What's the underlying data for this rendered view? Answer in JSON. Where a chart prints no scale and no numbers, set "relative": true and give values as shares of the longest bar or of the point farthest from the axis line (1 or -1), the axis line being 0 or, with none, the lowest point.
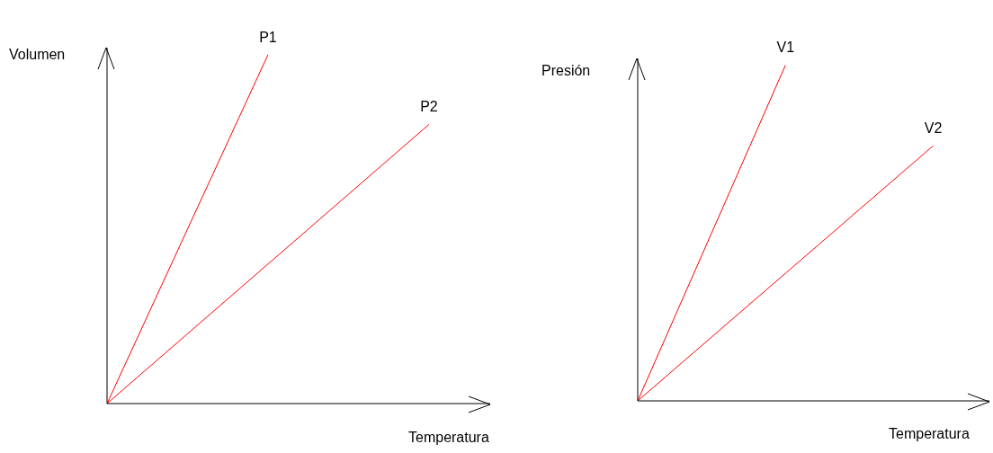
{
  "chart_data": [
    {
      "type": "line",
      "relative": true,
      "xlabel": "Temperatura",
      "ylabel": "Volumen",
      "categories": [
        null,
        null,
        null,
        null,
        null
      ],
      "series": [
        {
          "name": "P1",
          "color": "#ff0000",
          "values": [
            0,
            0.5,
            1,
            null,
            null
          ]
        },
        {
          "name": "P2",
          "color": "#ff0000",
          "values": [
            0,
            0.2,
            0.4,
            0.6,
            0.8
          ]
        }
      ]
    },
    {
      "type": "line",
      "relative": true,
      "xlabel": "Temperatura",
      "ylabel": "Presión",
      "categories": [
        null,
        null,
        null,
        null,
        null
      ],
      "series": [
        {
          "name": "V1",
          "color": "#ff0000",
          "values": [
            0,
            0.5,
            1,
            null,
            null
          ]
        },
        {
          "name": "V2",
          "color": "#ff0000",
          "values": [
            0,
            0.19,
            0.38,
            0.57,
            0.76
          ]
        }
      ]
    }
  ]
}
